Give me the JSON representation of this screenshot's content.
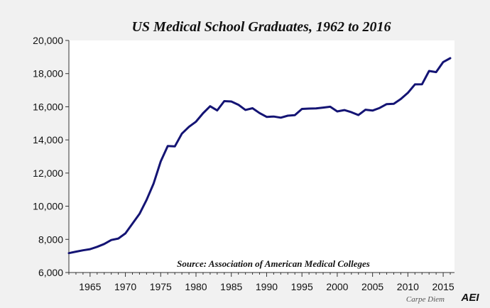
{
  "chart_data": {
    "type": "line",
    "title": "US Medical School Graduates, 1962 to 2016",
    "xlabel": "",
    "ylabel": "",
    "xlim": [
      1962,
      2016.6
    ],
    "ylim": [
      6000,
      20000
    ],
    "x_ticks": [
      1965,
      1970,
      1975,
      1980,
      1985,
      1990,
      1995,
      2000,
      2005,
      2010,
      2015
    ],
    "y_ticks": [
      6000,
      8000,
      10000,
      12000,
      14000,
      16000,
      18000,
      20000
    ],
    "y_tick_labels": [
      "6,000",
      "8,000",
      "10,000",
      "12,000",
      "14,000",
      "16,000",
      "18,000",
      "20,000"
    ],
    "grid": false,
    "line_color": "#141474",
    "annotation": "Source: Association of American Medical Colleges",
    "series": [
      {
        "x": [
          1962,
          1963,
          1964,
          1965,
          1966,
          1967,
          1968,
          1969,
          1970,
          1971,
          1972,
          1973,
          1974,
          1975,
          1976,
          1977,
          1978,
          1979,
          1980,
          1981,
          1982,
          1983,
          1984,
          1985,
          1986,
          1987,
          1988,
          1989,
          1990,
          1991,
          1992,
          1993,
          1994,
          1995,
          1996,
          1997,
          1998,
          1999,
          2000,
          2001,
          2002,
          2003,
          2004,
          2005,
          2006,
          2007,
          2008,
          2009,
          2010,
          2011,
          2012,
          2013,
          2014,
          2015,
          2016
        ],
        "values": [
          7170,
          7260,
          7340,
          7410,
          7550,
          7720,
          7960,
          8050,
          8360,
          8950,
          9540,
          10380,
          11370,
          12700,
          13630,
          13610,
          14380,
          14790,
          15100,
          15610,
          16030,
          15780,
          16340,
          16320,
          16120,
          15810,
          15910,
          15620,
          15390,
          15410,
          15340,
          15460,
          15490,
          15870,
          15890,
          15900,
          15950,
          16000,
          15720,
          15800,
          15670,
          15500,
          15820,
          15770,
          15930,
          16160,
          16180,
          16470,
          16840,
          17350,
          17360,
          18160,
          18090,
          18700,
          18930
        ]
      }
    ]
  },
  "footer": {
    "credit": "Carpe Diem",
    "logo": "AEI"
  }
}
